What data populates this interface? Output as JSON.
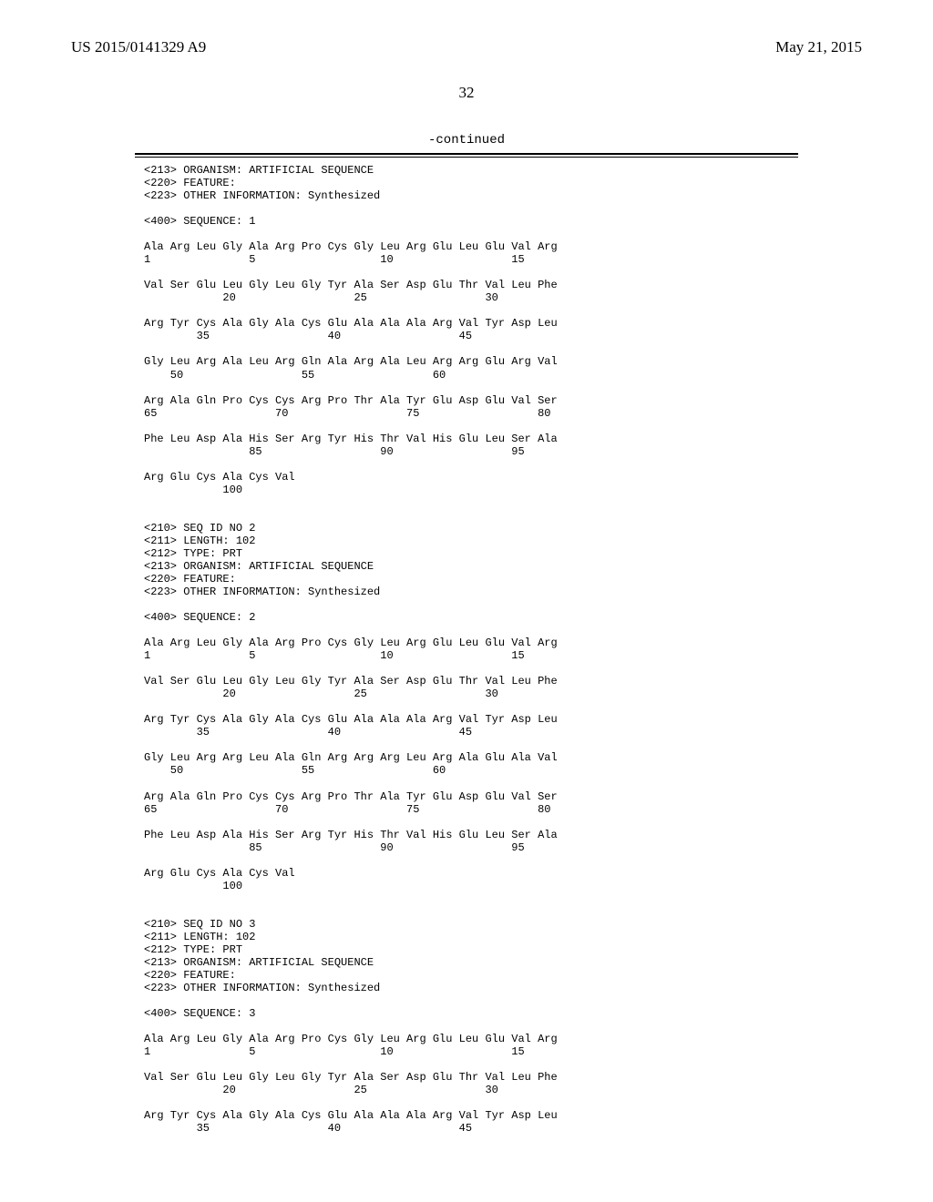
{
  "header": {
    "left": "US 2015/0141329 A9",
    "right": "May 21, 2015",
    "pageNumber": "32",
    "continued": "-continued"
  },
  "sequenceText": "<213> ORGANISM: ARTIFICIAL SEQUENCE\n<220> FEATURE:\n<223> OTHER INFORMATION: Synthesized\n\n<400> SEQUENCE: 1\n\nAla Arg Leu Gly Ala Arg Pro Cys Gly Leu Arg Glu Leu Glu Val Arg\n1               5                   10                  15\n\nVal Ser Glu Leu Gly Leu Gly Tyr Ala Ser Asp Glu Thr Val Leu Phe\n            20                  25                  30\n\nArg Tyr Cys Ala Gly Ala Cys Glu Ala Ala Ala Arg Val Tyr Asp Leu\n        35                  40                  45\n\nGly Leu Arg Ala Leu Arg Gln Ala Arg Ala Leu Arg Arg Glu Arg Val\n    50                  55                  60\n\nArg Ala Gln Pro Cys Cys Arg Pro Thr Ala Tyr Glu Asp Glu Val Ser\n65                  70                  75                  80\n\nPhe Leu Asp Ala His Ser Arg Tyr His Thr Val His Glu Leu Ser Ala\n                85                  90                  95\n\nArg Glu Cys Ala Cys Val\n            100\n\n\n<210> SEQ ID NO 2\n<211> LENGTH: 102\n<212> TYPE: PRT\n<213> ORGANISM: ARTIFICIAL SEQUENCE\n<220> FEATURE:\n<223> OTHER INFORMATION: Synthesized\n\n<400> SEQUENCE: 2\n\nAla Arg Leu Gly Ala Arg Pro Cys Gly Leu Arg Glu Leu Glu Val Arg\n1               5                   10                  15\n\nVal Ser Glu Leu Gly Leu Gly Tyr Ala Ser Asp Glu Thr Val Leu Phe\n            20                  25                  30\n\nArg Tyr Cys Ala Gly Ala Cys Glu Ala Ala Ala Arg Val Tyr Asp Leu\n        35                  40                  45\n\nGly Leu Arg Arg Leu Ala Gln Arg Arg Arg Leu Arg Ala Glu Ala Val\n    50                  55                  60\n\nArg Ala Gln Pro Cys Cys Arg Pro Thr Ala Tyr Glu Asp Glu Val Ser\n65                  70                  75                  80\n\nPhe Leu Asp Ala His Ser Arg Tyr His Thr Val His Glu Leu Ser Ala\n                85                  90                  95\n\nArg Glu Cys Ala Cys Val\n            100\n\n\n<210> SEQ ID NO 3\n<211> LENGTH: 102\n<212> TYPE: PRT\n<213> ORGANISM: ARTIFICIAL SEQUENCE\n<220> FEATURE:\n<223> OTHER INFORMATION: Synthesized\n\n<400> SEQUENCE: 3\n\nAla Arg Leu Gly Ala Arg Pro Cys Gly Leu Arg Glu Leu Glu Val Arg\n1               5                   10                  15\n\nVal Ser Glu Leu Gly Leu Gly Tyr Ala Ser Asp Glu Thr Val Leu Phe\n            20                  25                  30\n\nArg Tyr Cys Ala Gly Ala Cys Glu Ala Ala Ala Arg Val Tyr Asp Leu\n        35                  40                  45"
}
